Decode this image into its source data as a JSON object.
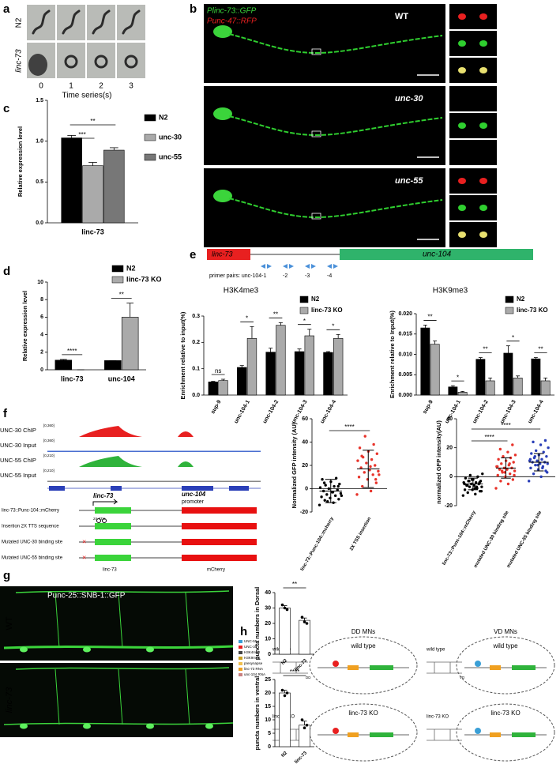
{
  "panel_labels": [
    "a",
    "b",
    "c",
    "d",
    "e",
    "f",
    "g",
    "h"
  ],
  "panel_a": {
    "rows": [
      "N2",
      "linc-73"
    ],
    "times": [
      "0",
      "1",
      "2",
      "3"
    ],
    "xlabel": "Time series(s)"
  },
  "panel_b": {
    "legend": [
      "Plinc-73::GFP",
      "Punc-47::RFP"
    ],
    "strains": [
      "WT",
      "unc-30",
      "unc-55"
    ]
  },
  "panel_e_map": {
    "genes": [
      "linc-73",
      "unc-104"
    ],
    "primers": [
      "primer pairs: unc-104-1",
      "-2",
      "-3",
      "-4"
    ]
  },
  "panel_f_tracks": {
    "tracks": [
      {
        "name": "UNC-30 ChIP",
        "range": "[0,360]"
      },
      {
        "name": "UNC-30 Input",
        "range": "[0,360]"
      },
      {
        "name": "UNC-55 ChIP",
        "range": "[0,210]"
      },
      {
        "name": "UNC-55 Input",
        "range": "[0,210]"
      }
    ],
    "gene_labels": [
      "linc-73",
      "unc-104"
    ],
    "promoter": "promoter",
    "tts": "2X TTS",
    "constructs": [
      "linc-73::Punc-104::mCherry",
      "Insertion 2X TTS sequence",
      "Mutated UNC-30 binding site",
      "Mutated UNC-55 binding site"
    ],
    "parts": [
      "linc-73",
      "mCherry"
    ]
  },
  "panel_g": {
    "title": "Punc-25::SNB-1::GFP",
    "rows": [
      "WT",
      "linc-73"
    ]
  },
  "panel_h": {
    "legend": [
      "UNC-55",
      "UNC-30",
      "H3K4me3",
      "H3K9me3",
      "presynapse",
      "linc-73 RNA",
      "unc-104 RNA"
    ],
    "conditions": [
      "wild type",
      "linc-73 KO"
    ],
    "cell_types": [
      "DD MNs",
      "VD MNs"
    ],
    "neurons": [
      "DD",
      "VD"
    ]
  },
  "chart_data": [
    {
      "type": "bar",
      "ylabel": "Relative expression level",
      "categories": [
        "linc-73"
      ],
      "series": [
        {
          "name": "N2",
          "color": "#000000",
          "values": [
            1.04
          ],
          "errors": [
            0.03
          ]
        },
        {
          "name": "unc-30",
          "color": "#aaaaaa",
          "values": [
            0.7
          ],
          "errors": [
            0.04
          ]
        },
        {
          "name": "unc-55",
          "color": "#777777",
          "values": [
            0.89
          ],
          "errors": [
            0.03
          ]
        }
      ],
      "ylim": [
        0,
        1.5
      ],
      "yticks": [
        {
          "value": 0,
          "label": "0.0"
        },
        {
          "value": 0.5,
          "label": "0.5"
        },
        {
          "value": 1,
          "label": "1.0"
        },
        {
          "value": 1.5,
          "label": "1.5"
        }
      ],
      "significance": [
        "***",
        "**"
      ]
    },
    {
      "type": "bar",
      "ylabel": "Relative expression level",
      "categories": [
        "linc-73",
        "unc-104"
      ],
      "series": [
        {
          "name": "N2",
          "color": "#000000",
          "values": [
            1.1,
            1.05
          ],
          "errors": [
            0.08,
            0
          ]
        },
        {
          "name": "linc-73 KO",
          "color": "#aaaaaa",
          "values": [
            0,
            6.0
          ],
          "errors": [
            0,
            1.6
          ]
        }
      ],
      "ylim": [
        0,
        10
      ],
      "yticks": [
        0,
        2,
        4,
        6,
        8,
        10
      ],
      "significance": [
        "****",
        "**"
      ]
    },
    {
      "type": "bar",
      "title": "H3K4me3",
      "ylabel": "Enrichment relative to input(%)",
      "categories": [
        "sup-9",
        "unc-104-1",
        "unc-104-2",
        "unc-104-3",
        "unc-104-4"
      ],
      "series": [
        {
          "name": "N2",
          "color": "#000000",
          "values": [
            0.05,
            0.105,
            0.163,
            0.165,
            0.162
          ],
          "errors": [
            0.002,
            0.007,
            0.015,
            0.01,
            0.003
          ]
        },
        {
          "name": "linc-73 KO",
          "color": "#aaaaaa",
          "values": [
            0.055,
            0.215,
            0.265,
            0.225,
            0.215
          ],
          "errors": [
            0.005,
            0.045,
            0.01,
            0.025,
            0.015
          ]
        }
      ],
      "ylim": [
        0,
        0.3
      ],
      "yticks": [
        {
          "value": 0,
          "label": "0.0"
        },
        0.1,
        0.2,
        0.3
      ],
      "significance": [
        "ns",
        "*",
        "**",
        "*",
        "*"
      ]
    },
    {
      "type": "bar",
      "title": "H3K9me3",
      "ylabel": "Enrichment relative to Input(%)",
      "categories": [
        "sup-9",
        "unc-104-1",
        "unc-104-2",
        "unc-104-3",
        "unc-104-4"
      ],
      "series": [
        {
          "name": "N2",
          "color": "#000000",
          "values": [
            0.0165,
            0.002,
            0.0088,
            0.0103,
            0.0089
          ],
          "errors": [
            0.0007,
            0.0003,
            0.0004,
            0.0018,
            0.0003
          ]
        },
        {
          "name": "linc-73 KO",
          "color": "#aaaaaa",
          "values": [
            0.0125,
            0.0007,
            0.0035,
            0.0042,
            0.0035
          ],
          "errors": [
            0.0008,
            0.0002,
            0.0007,
            0.0005,
            0.0007
          ]
        }
      ],
      "ylim": [
        0,
        0.02
      ],
      "yticks": [
        {
          "value": 0,
          "label": "0.000"
        },
        {
          "value": 0.005,
          "label": "0.005"
        },
        {
          "value": 0.01,
          "label": "0.010"
        },
        {
          "value": 0.015,
          "label": "0.015"
        },
        {
          "value": 0.02,
          "label": "0.020"
        }
      ],
      "significance": [
        "**",
        "*",
        "**",
        "*",
        "**"
      ]
    },
    {
      "type": "scatter",
      "ylabel": "Normalized GFP intensity (AU)",
      "categories": [
        "linc-73::Punc-104::mcherry",
        "2X TSS insertion"
      ],
      "groups": [
        {
          "color": "#000000",
          "mean": -2,
          "sd": 10,
          "values": [
            -14,
            -12,
            -10,
            -9,
            -8,
            -7,
            -6,
            -5,
            -4,
            -3,
            -2,
            -1,
            0,
            1,
            2,
            3,
            4,
            6,
            8,
            9,
            -11,
            -6,
            -3,
            5,
            2
          ]
        },
        {
          "color": "#e8332a",
          "mean": 17,
          "sd": 16,
          "values": [
            -5,
            -2,
            2,
            5,
            8,
            10,
            12,
            14,
            15,
            16,
            18,
            20,
            22,
            24,
            25,
            27,
            30,
            32,
            35,
            38,
            45,
            12,
            19,
            28,
            8
          ]
        }
      ],
      "ylim": [
        -20,
        60
      ],
      "yticks": [
        -20,
        0,
        20,
        40,
        60
      ],
      "significance": [
        "****"
      ]
    },
    {
      "type": "scatter",
      "ylabel": "normalized GFP intensity(AU)",
      "categories": [
        "linc-73::Punc-104::mCherry",
        "mutated UNC-30 binding site",
        "mutated UNC-55 binding site"
      ],
      "groups": [
        {
          "color": "#000000",
          "mean": -5,
          "sd": 4,
          "values": [
            -13,
            -12,
            -11,
            -10,
            -9,
            -9,
            -8,
            -7,
            -7,
            -6,
            -6,
            -5,
            -5,
            -4,
            -4,
            -3,
            -3,
            -2,
            -1,
            0,
            1,
            2,
            -8,
            -6,
            -4,
            -2,
            -5,
            -7,
            -3,
            -10
          ]
        },
        {
          "color": "#e8332a",
          "mean": 6,
          "sd": 7,
          "values": [
            -8,
            -5,
            -3,
            -2,
            0,
            1,
            2,
            3,
            4,
            5,
            5,
            6,
            6,
            7,
            8,
            9,
            10,
            11,
            12,
            13,
            14,
            15,
            17,
            19,
            22,
            3,
            7,
            9,
            4,
            1
          ]
        },
        {
          "color": "#2a3fb8",
          "mean": 10,
          "sd": 6,
          "values": [
            -3,
            0,
            2,
            4,
            5,
            6,
            7,
            8,
            9,
            9,
            10,
            10,
            11,
            11,
            12,
            13,
            14,
            15,
            16,
            17,
            18,
            20,
            22,
            24,
            25,
            8,
            12,
            6,
            14,
            3
          ]
        }
      ],
      "ylim": [
        -20,
        40
      ],
      "yticks": [
        -20,
        0,
        20,
        40
      ],
      "significance": [
        "****",
        "****"
      ]
    },
    {
      "type": "bar",
      "ylabel": "puncta numbers in Dorsal",
      "categories": [
        "N2",
        "linc-73"
      ],
      "series": [
        {
          "color": "#ffffff",
          "values": [
            30,
            22
          ],
          "errors": [
            1.5,
            1.5
          ],
          "points": [
            [
              32,
              30,
              29
            ],
            [
              24,
              21,
              20
            ]
          ]
        }
      ],
      "ylim": [
        0,
        40
      ],
      "yticks": [
        0,
        10,
        20,
        30,
        40
      ],
      "significance": [
        "**"
      ]
    },
    {
      "type": "bar",
      "ylabel": "puncta numbers in ventral",
      "categories": [
        "N2",
        "linc-73"
      ],
      "series": [
        {
          "color": "#ffffff",
          "values": [
            20,
            8
          ],
          "errors": [
            1,
            1.5
          ],
          "points": [
            [
              21,
              19,
              20
            ],
            [
              10,
              7,
              8
            ]
          ]
        }
      ],
      "ylim": [
        0,
        25
      ],
      "yticks": [
        0,
        5,
        10,
        15,
        20,
        25
      ],
      "significance": [
        "****"
      ]
    }
  ]
}
